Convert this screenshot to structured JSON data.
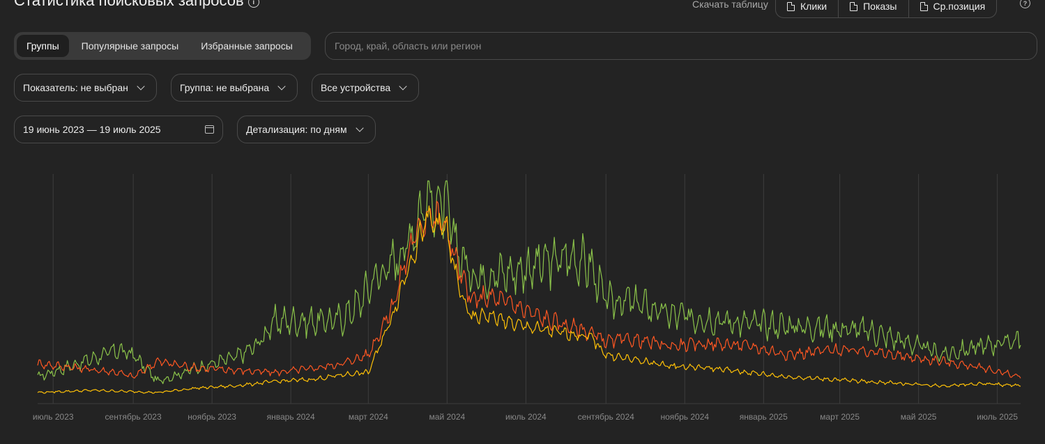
{
  "header": {
    "title": "Статистика поисковых запросов",
    "download_label": "Скачать таблицу",
    "download_buttons": [
      "Клики",
      "Показы",
      "Ср.позиция"
    ]
  },
  "tabs": [
    "Группы",
    "Популярные запросы",
    "Избранные запросы"
  ],
  "region_placeholder": "Город, край, область или регион",
  "filters": {
    "metric": "Показатель: не выбран",
    "group": "Группа: не выбрана",
    "devices": "Все устройства",
    "date_range": "19 июнь 2023 — 19 июль 2025",
    "detail": "Детализация: по дням"
  },
  "colors": {
    "green": "#8bc34a",
    "red": "#ff5722",
    "yellow": "#ffc107",
    "grid": "#3d3d3d",
    "axis_text": "#888888"
  },
  "chart_data": {
    "type": "line",
    "x_ticks": [
      "июль 2023",
      "сентябрь 2023",
      "ноябрь 2023",
      "январь 2024",
      "март 2024",
      "май 2024",
      "июль 2024",
      "сентябрь 2024",
      "ноябрь 2024",
      "январь 2025",
      "март 2025",
      "май 2025",
      "июль 2025"
    ],
    "x_start": "2023-06-19",
    "x_end": "2025-07-19",
    "series": [
      {
        "color": "#8bc34a",
        "dates": [
          "2023-06-19",
          "2023-07-20",
          "2023-08-20",
          "2023-09-01",
          "2023-09-20",
          "2023-10-20",
          "2023-11-20",
          "2023-12-05",
          "2023-12-20",
          "2024-01-20",
          "2024-02-10",
          "2024-02-25",
          "2024-03-05",
          "2024-03-20",
          "2024-04-01",
          "2024-04-15",
          "2024-04-30",
          "2024-05-10",
          "2024-05-20",
          "2024-06-01",
          "2024-06-20",
          "2024-07-15",
          "2024-08-05",
          "2024-08-20",
          "2024-09-01",
          "2024-09-20",
          "2024-10-20",
          "2024-11-20",
          "2024-12-20",
          "2025-01-20",
          "2025-02-20",
          "2025-03-20",
          "2025-04-20",
          "2025-05-20",
          "2025-06-20",
          "2025-07-19"
        ],
        "values": [
          12,
          18,
          24,
          22,
          10,
          16,
          21,
          26,
          37,
          37,
          38,
          47,
          56,
          63,
          73,
          93,
          88,
          68,
          58,
          58,
          59,
          63,
          66,
          62,
          46,
          46,
          40,
          38,
          36,
          35,
          34,
          33,
          28,
          22,
          26,
          29
        ]
      },
      {
        "color": "#ff5722",
        "dates": [
          "2023-06-19",
          "2023-07-20",
          "2023-08-20",
          "2023-09-01",
          "2023-09-20",
          "2023-10-20",
          "2023-11-20",
          "2023-12-20",
          "2024-01-20",
          "2024-02-10",
          "2024-03-01",
          "2024-03-20",
          "2024-04-01",
          "2024-04-15",
          "2024-04-30",
          "2024-05-10",
          "2024-05-20",
          "2024-06-01",
          "2024-06-20",
          "2024-07-15",
          "2024-08-20",
          "2024-09-01",
          "2024-09-20",
          "2024-10-20",
          "2024-11-20",
          "2024-12-20",
          "2025-01-20",
          "2025-02-20",
          "2025-03-20",
          "2025-04-20",
          "2025-05-20",
          "2025-06-20",
          "2025-07-19"
        ],
        "values": [
          18,
          16,
          14,
          12,
          19,
          16,
          15,
          14,
          16,
          18,
          22,
          44,
          68,
          86,
          80,
          60,
          46,
          48,
          45,
          38,
          32,
          28,
          29,
          26,
          27,
          26,
          22,
          24,
          24,
          21,
          19,
          16,
          12
        ]
      },
      {
        "color": "#ffc107",
        "dates": [
          "2023-06-19",
          "2023-08-01",
          "2023-09-20",
          "2023-10-20",
          "2023-11-20",
          "2023-12-20",
          "2024-01-20",
          "2024-02-10",
          "2024-03-01",
          "2024-03-20",
          "2024-04-01",
          "2024-04-15",
          "2024-04-30",
          "2024-05-10",
          "2024-05-20",
          "2024-06-01",
          "2024-06-20",
          "2024-07-15",
          "2024-08-20",
          "2024-09-01",
          "2024-09-20",
          "2024-10-20",
          "2024-11-20",
          "2024-12-20",
          "2025-01-20",
          "2025-02-20",
          "2025-03-20",
          "2025-04-20",
          "2025-05-20",
          "2025-06-20",
          "2025-07-19"
        ],
        "values": [
          5,
          6,
          5,
          7,
          8,
          10,
          11,
          13,
          14,
          40,
          62,
          82,
          79,
          52,
          38,
          40,
          36,
          33,
          30,
          22,
          20,
          17,
          16,
          14,
          12,
          11,
          10,
          9,
          8,
          9,
          8
        ]
      }
    ]
  }
}
